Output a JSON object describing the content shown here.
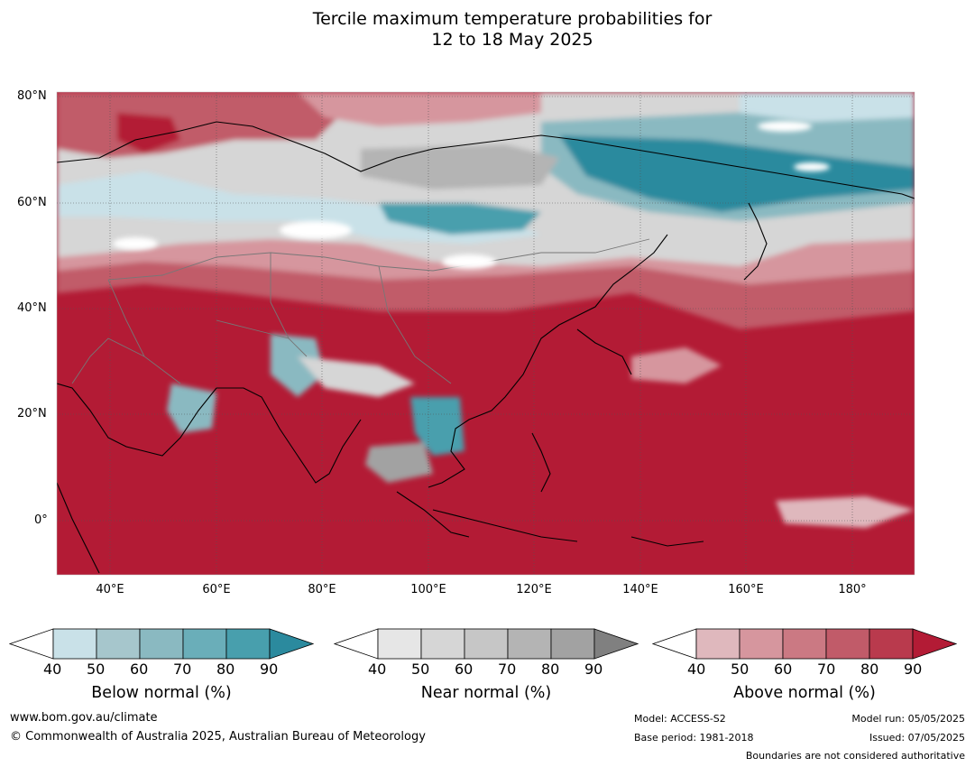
{
  "title_line1": "Tercile maximum temperature probabilities for",
  "title_line2": "12 to 18 May 2025",
  "lat_labels": [
    "80°N",
    "60°N",
    "40°N",
    "20°N",
    "0°"
  ],
  "lon_labels": [
    "40°E",
    "60°E",
    "80°E",
    "100°E",
    "120°E",
    "140°E",
    "160°E",
    "180°"
  ],
  "colorbars": [
    {
      "title": "Below normal (%)",
      "ticks": [
        "40",
        "50",
        "60",
        "70",
        "80",
        "90"
      ],
      "colors": [
        "#c9e1e8",
        "#a6c6cc",
        "#8ab9c1",
        "#6aaeb9",
        "#489fad",
        "#2b8a9e"
      ]
    },
    {
      "title": "Near normal (%)",
      "ticks": [
        "40",
        "50",
        "60",
        "70",
        "80",
        "90"
      ],
      "colors": [
        "#e6e6e6",
        "#d6d6d6",
        "#c6c6c6",
        "#b4b4b4",
        "#a2a2a2",
        "#808080"
      ]
    },
    {
      "title": "Above normal (%)",
      "ticks": [
        "40",
        "50",
        "60",
        "70",
        "80",
        "90"
      ],
      "colors": [
        "#dfb8bd",
        "#d6969e",
        "#cb7983",
        "#c15b69",
        "#b93a4d",
        "#b31b35"
      ]
    }
  ],
  "footer": {
    "website": "www.bom.gov.au/climate",
    "copyright": "© Commonwealth of Australia 2025, Australian Bureau of Meteorology",
    "model": "Model: ACCESS-S2",
    "base_period": "Base period: 1981-2018",
    "model_run": "Model run: 05/05/2025",
    "issued": "Issued: 07/05/2025",
    "boundaries": "Boundaries are not considered authoritative"
  }
}
